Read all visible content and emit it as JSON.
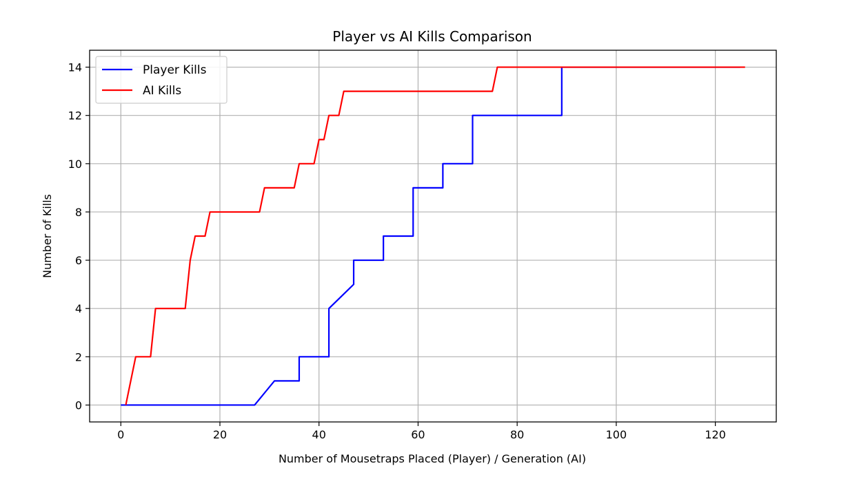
{
  "chart_data": {
    "type": "line",
    "title": "Player vs AI Kills Comparison",
    "xlabel": "Number of Mousetraps Placed (Player) / Generation (AI)",
    "ylabel": "Number of Kills",
    "xlim": [
      -6.3,
      132.3
    ],
    "ylim": [
      -0.7,
      14.7
    ],
    "xticks": [
      0,
      20,
      40,
      60,
      80,
      100,
      120
    ],
    "yticks": [
      0,
      2,
      4,
      6,
      8,
      10,
      12,
      14
    ],
    "grid": true,
    "legend": "upper-left",
    "series": [
      {
        "name": "Player Kills",
        "color": "#0000ff",
        "x": [
          0,
          27,
          31,
          36,
          36,
          42,
          42,
          47,
          47,
          53,
          53,
          59,
          59,
          65,
          65,
          71,
          71,
          89,
          89,
          125
        ],
        "y": [
          0,
          0,
          1,
          1,
          2,
          2,
          4,
          5,
          6,
          6,
          7,
          7,
          9,
          9,
          10,
          10,
          12,
          12,
          14,
          14
        ]
      },
      {
        "name": "AI Kills",
        "color": "#ff0000",
        "x": [
          1,
          3,
          6,
          7,
          13,
          14,
          15,
          17,
          18,
          28,
          29,
          35,
          36,
          39,
          40,
          41,
          42,
          44,
          45,
          75,
          76,
          126
        ],
        "y": [
          0,
          2,
          2,
          4,
          4,
          6,
          7,
          7,
          8,
          8,
          9,
          9,
          10,
          10,
          11,
          11,
          12,
          12,
          13,
          13,
          14,
          14
        ]
      }
    ]
  }
}
